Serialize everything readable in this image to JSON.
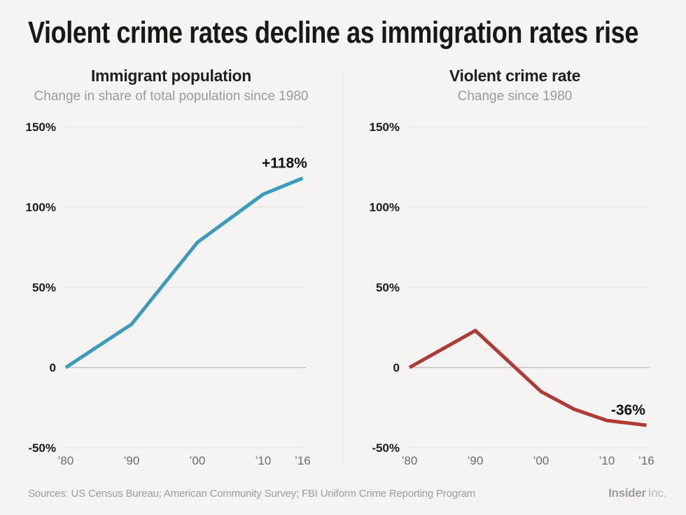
{
  "page": {
    "title": "Violent crime rates decline as immigration rates rise",
    "background": "#f5f4f2",
    "footer": {
      "sources": "Sources: US Census Bureau; American Community Survey; FBI Uniform Crime Reporting Program",
      "brand_bold": "Insider",
      "brand_light": "Inc."
    }
  },
  "chart_data": [
    {
      "id": "immigrant-population",
      "type": "line",
      "title": "Immigrant population",
      "subtitle": "Change in share of total population since 1980",
      "line_color": "#3a9bbe",
      "annotation": "+118%",
      "x": [
        1980,
        1990,
        2000,
        2010,
        2016
      ],
      "values": [
        0,
        27,
        78,
        108,
        118
      ],
      "ylim": [
        -50,
        150
      ],
      "grid": true,
      "legend": "none",
      "yticks": [
        {
          "v": 150,
          "label": "150%"
        },
        {
          "v": 100,
          "label": "100%"
        },
        {
          "v": 50,
          "label": "50%"
        },
        {
          "v": 0,
          "label": "0"
        },
        {
          "v": -50,
          "label": "-50%"
        }
      ],
      "xticks": [
        {
          "year": 1980,
          "label": "’80"
        },
        {
          "year": 1990,
          "label": "’90"
        },
        {
          "year": 2000,
          "label": "’00"
        },
        {
          "year": 2010,
          "label": "’10"
        },
        {
          "year": 2016,
          "label": "’16"
        }
      ],
      "zero_line_color": "#c3c2c0",
      "grid_color": "#e9e8e6"
    },
    {
      "id": "violent-crime-rate",
      "type": "line",
      "title": "Violent crime rate",
      "subtitle": "Change since 1980",
      "line_color": "#b03a36",
      "annotation": "-36%",
      "x": [
        1980,
        1990,
        2000,
        2005,
        2010,
        2016
      ],
      "values": [
        0,
        23,
        -15,
        -26,
        -33,
        -36
      ],
      "ylim": [
        -50,
        150
      ],
      "grid": true,
      "legend": "none",
      "yticks": [
        {
          "v": 150,
          "label": "150%"
        },
        {
          "v": 100,
          "label": "100%"
        },
        {
          "v": 50,
          "label": "50%"
        },
        {
          "v": 0,
          "label": "0"
        },
        {
          "v": -50,
          "label": "-50%"
        }
      ],
      "xticks": [
        {
          "year": 1980,
          "label": "’80"
        },
        {
          "year": 1990,
          "label": "’90"
        },
        {
          "year": 2000,
          "label": "’00"
        },
        {
          "year": 2010,
          "label": "’10"
        },
        {
          "year": 2016,
          "label": "’16"
        }
      ],
      "zero_line_color": "#c3c2c0",
      "grid_color": "#e9e8e6"
    }
  ]
}
